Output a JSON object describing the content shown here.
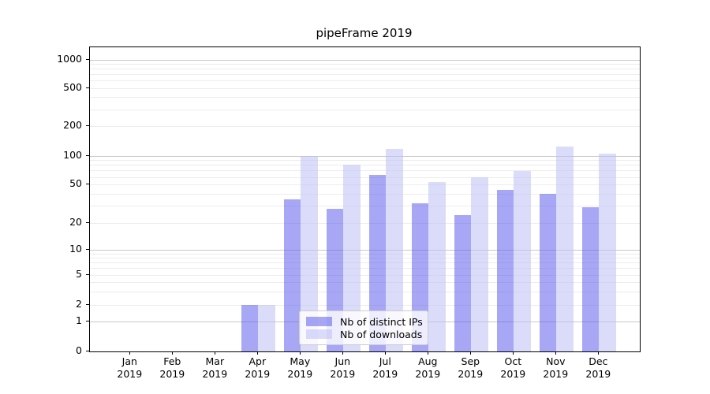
{
  "chart_data": {
    "type": "bar",
    "title": "pipeFrame 2019",
    "categories": [
      "Jan",
      "Feb",
      "Mar",
      "Apr",
      "May",
      "Jun",
      "Jul",
      "Aug",
      "Sep",
      "Oct",
      "Nov",
      "Dec"
    ],
    "category_year": "2019",
    "series": [
      {
        "name": "Nb of distinct IPs",
        "color": "#5050eb",
        "alpha": 0.5,
        "values": [
          0,
          0,
          0,
          2,
          35,
          28,
          63,
          32,
          24,
          44,
          40,
          29
        ]
      },
      {
        "name": "Nb of downloads",
        "color": "#bebef5",
        "alpha": 0.55,
        "values": [
          0,
          0,
          0,
          2,
          100,
          80,
          118,
          53,
          60,
          70,
          125,
          104
        ]
      }
    ],
    "y_axis": {
      "scale": "symlog",
      "tick_labels": [
        0,
        1,
        2,
        5,
        10,
        20,
        50,
        100,
        200,
        500,
        1000
      ],
      "major_gridlines": [
        1,
        10,
        100,
        1000
      ],
      "minor_gridlines": [
        2,
        3,
        4,
        5,
        6,
        7,
        8,
        9,
        20,
        30,
        40,
        50,
        60,
        70,
        80,
        90,
        200,
        300,
        400,
        500,
        600,
        700,
        800,
        900
      ],
      "range": [
        0,
        1200
      ]
    },
    "grid": true,
    "legend_position": "lower-center-inside",
    "colors": {
      "bar_dark_on_white": "#a8a8f3",
      "bar_light_on_white": "#d9d9f8",
      "grid_major": "#c9c9c9",
      "grid_minor": "#ededed",
      "axis": "#000000"
    }
  }
}
